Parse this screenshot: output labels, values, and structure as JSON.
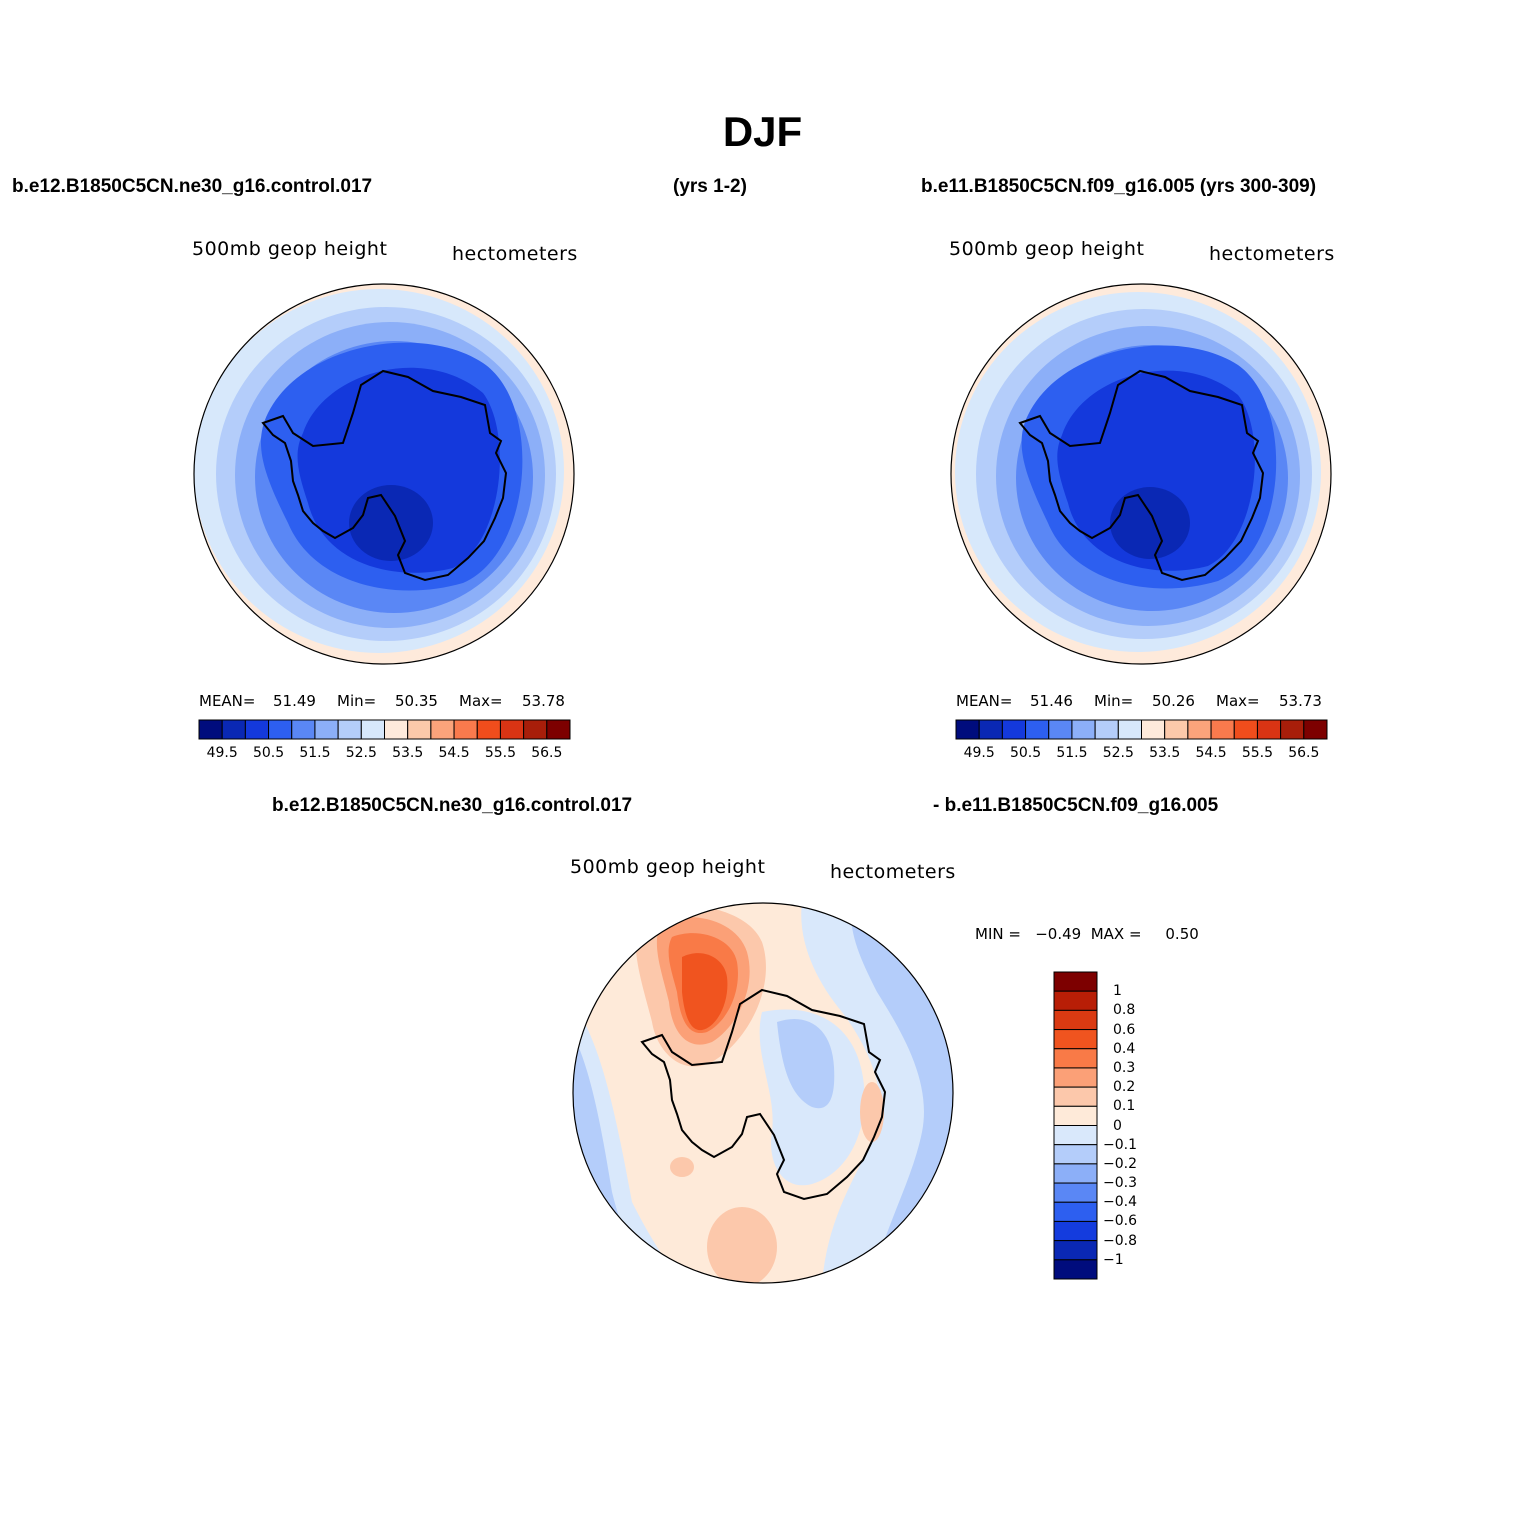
{
  "title": "DJF",
  "header": {
    "case1": "b.e12.B1850C5CN.ne30_g16.control.017",
    "case1_years": "(yrs 1-2)",
    "case2": "b.e11.B1850C5CN.f09_g16.005 (yrs 300-309)"
  },
  "diff_header": {
    "left": "b.e12.B1850C5CN.ne30_g16.control.017",
    "right": "- b.e11.B1850C5CN.f09_g16.005"
  },
  "panels": [
    {
      "variable": "500mb  geop  height",
      "units": "hectometers",
      "mean_label": "MEAN=",
      "mean": "51.49",
      "min_label": "Min=",
      "min": "50.35",
      "max_label": "Max=",
      "max": "53.78"
    },
    {
      "variable": "500mb  geop  height",
      "units": "hectometers",
      "mean_label": "MEAN=",
      "mean": "51.46",
      "min_label": "Min=",
      "min": "50.26",
      "max_label": "Max=",
      "max": "53.73"
    }
  ],
  "diff_panel": {
    "variable": "500mb  geop  height",
    "units": "hectometers",
    "stats": "MIN =   −0.49  MAX =     0.50"
  },
  "colorbar": {
    "colors": [
      "#000c7d",
      "#0a28b4",
      "#1439dc",
      "#2d5ff0",
      "#5a87f5",
      "#8caff8",
      "#b4cdfa",
      "#d7e8fb",
      "#feeadb",
      "#fcc9aa",
      "#fba37b",
      "#f97a4d",
      "#f04d1c",
      "#d93414",
      "#a81e0a",
      "#7d0000"
    ],
    "ticks": [
      "49.5",
      "50.5",
      "51.5",
      "52.5",
      "53.5",
      "54.5",
      "55.5",
      "56.5"
    ]
  },
  "diff_colorbar": {
    "colors": [
      "#7d0000",
      "#b81e06",
      "#da3a12",
      "#f0541f",
      "#f97a47",
      "#fba077",
      "#fcc8ab",
      "#feead9",
      "#d9e8fb",
      "#b4cdfa",
      "#8caff8",
      "#5a87f5",
      "#2d5ff0",
      "#143cde",
      "#0a28b4",
      "#000c7d"
    ],
    "ticks": [
      "1",
      "0.8",
      "0.6",
      "0.4",
      "0.3",
      "0.2",
      "0.1",
      "0",
      "−0.1",
      "−0.2",
      "−0.3",
      "−0.4",
      "−0.6",
      "−0.8",
      "−1"
    ]
  }
}
